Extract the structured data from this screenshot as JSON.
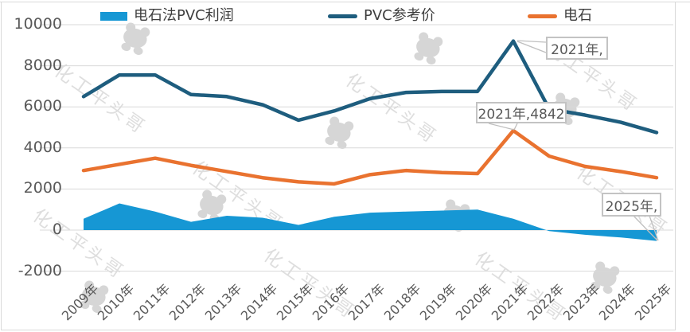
{
  "legend": [
    {
      "label": "电石法PVC利润",
      "color": "#1697d4",
      "swatch": "area"
    },
    {
      "label": "PVC参考价",
      "color": "#1e5d7e",
      "swatch": "line"
    },
    {
      "label": "电石",
      "color": "#e9722f",
      "swatch": "line"
    }
  ],
  "watermark": {
    "text": "化工平头哥"
  },
  "chart_data": {
    "type": "area",
    "categories": [
      "2009年",
      "2010年",
      "2011年",
      "2012年",
      "2013年",
      "2014年",
      "2015年",
      "2016年",
      "2017年",
      "2018年",
      "2019年",
      "2020年",
      "2021年",
      "2022年",
      "2023年",
      "2024年",
      "2025年"
    ],
    "series": [
      {
        "name": "电石法PVC利润",
        "type": "area",
        "color": "#1697d4",
        "values": [
          550,
          1300,
          900,
          400,
          700,
          600,
          250,
          650,
          850,
          900,
          950,
          1000,
          550,
          -50,
          -230,
          -360,
          -530
        ]
      },
      {
        "name": "PVC参考价",
        "type": "line",
        "color": "#1e5d7e",
        "values": [
          6500,
          7550,
          7550,
          6600,
          6500,
          6100,
          5350,
          5800,
          6400,
          6700,
          6750,
          6750,
          9200,
          5900,
          5600,
          5250,
          4750
        ]
      },
      {
        "name": "电石",
        "type": "line",
        "color": "#e9722f",
        "values": [
          2900,
          3200,
          3500,
          3150,
          2850,
          2550,
          2350,
          2250,
          2700,
          2900,
          2800,
          2750,
          4842,
          3600,
          3100,
          2850,
          2550
        ]
      }
    ],
    "title": "",
    "xlabel": "",
    "ylabel": "",
    "ylim": [
      -2000,
      10000
    ],
    "yticks": [
      10000,
      8000,
      6000,
      4000,
      2000,
      0,
      -2000
    ],
    "grid": true,
    "legend_position": "top",
    "annotations": [
      {
        "text": "2021年,",
        "series": "PVC参考价",
        "category": "2021年"
      },
      {
        "text": "2021年,4842",
        "series": "电石",
        "category": "2021年",
        "value": 4842
      },
      {
        "text": "2025年,",
        "series": "电石法PVC利润",
        "category": "2025年"
      }
    ]
  }
}
